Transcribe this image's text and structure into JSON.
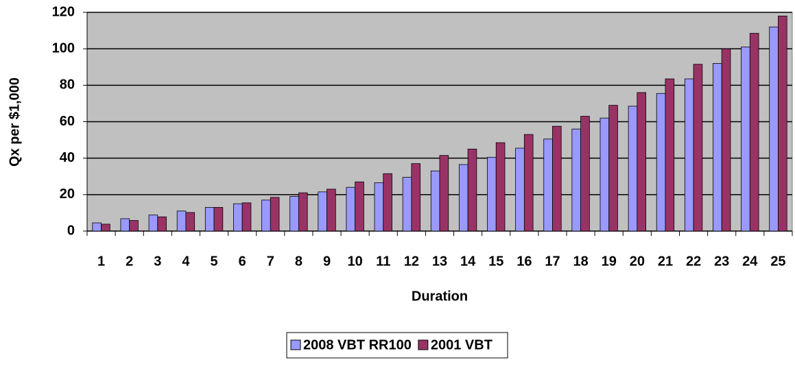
{
  "chart_data": {
    "type": "bar",
    "x_label": "Duration",
    "y_label": "Qx per $1,000",
    "categories": [
      "1",
      "2",
      "3",
      "4",
      "5",
      "6",
      "7",
      "8",
      "9",
      "10",
      "11",
      "12",
      "13",
      "14",
      "15",
      "16",
      "17",
      "18",
      "19",
      "20",
      "21",
      "22",
      "23",
      "24",
      "25"
    ],
    "series": [
      {
        "name": "2008 VBT RR100",
        "color": "#9999ff",
        "values": [
          4.5,
          6.8,
          8.8,
          11,
          13,
          15,
          17,
          19,
          21.5,
          24,
          26.5,
          29.5,
          33,
          36.5,
          40.5,
          45.5,
          50.5,
          56,
          62,
          68.5,
          75.5,
          83.5,
          92,
          101,
          112
        ]
      },
      {
        "name": "2001 VBT",
        "color": "#993366",
        "values": [
          3.8,
          5.8,
          7.8,
          10.2,
          13,
          15.5,
          18.5,
          21,
          23,
          27,
          31.5,
          37,
          41.5,
          45,
          48.5,
          53,
          57.5,
          63,
          69,
          76,
          83.5,
          91.5,
          100,
          108.5,
          118
        ]
      }
    ],
    "ylim": [
      0,
      120
    ],
    "yticks": [
      0,
      20,
      40,
      60,
      80,
      100,
      120
    ],
    "grid": true,
    "legend": "bottom"
  }
}
